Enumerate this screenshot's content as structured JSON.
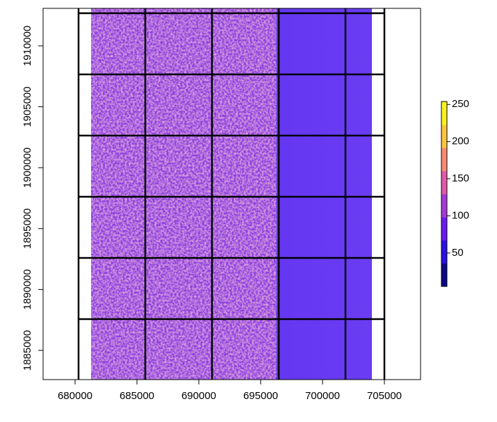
{
  "chart_data": {
    "type": "raster",
    "xlim": [
      677416,
      707921
    ],
    "ylim": [
      1882603,
      1913082
    ],
    "xticks": [
      680000,
      685000,
      690000,
      695000,
      700000,
      705000
    ],
    "yticks": [
      1885000,
      1890000,
      1895000,
      1900000,
      1905000,
      1910000
    ],
    "raster_extent_x": [
      681292,
      703989
    ],
    "tile_lines_x": [
      680281,
      685674,
      691067,
      696461,
      701854,
      705000
    ],
    "tile_lines_y": [
      1912683,
      1907660,
      1902637,
      1897614,
      1892591,
      1887568
    ],
    "colorbar": {
      "lim": [
        5,
        254
      ],
      "ticks": [
        50,
        100,
        150,
        200,
        250
      ],
      "colors": [
        "#0d0887",
        "#2a12e0",
        "#6a1cf0",
        "#a33ad6",
        "#e05aa8",
        "#f88a70",
        "#fbc640",
        "#f8f020"
      ]
    }
  }
}
